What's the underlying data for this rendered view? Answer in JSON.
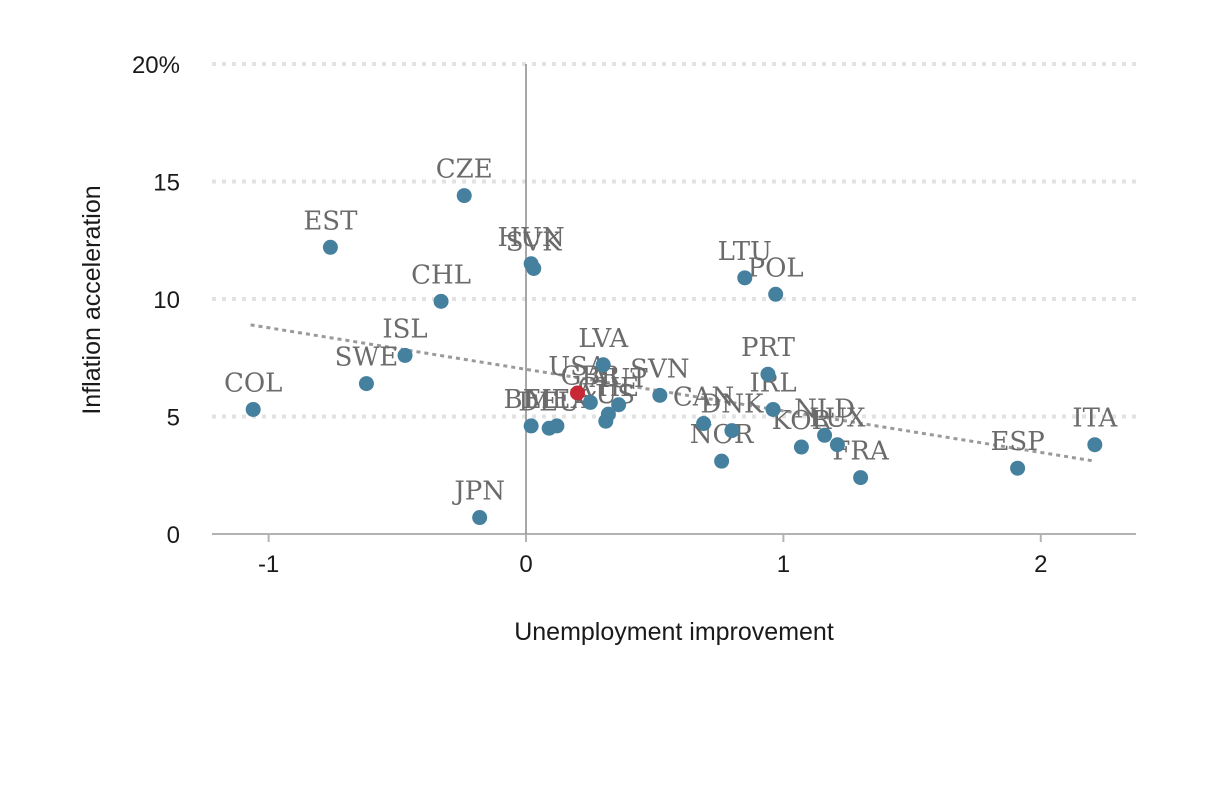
{
  "chart_data": {
    "type": "scatter",
    "xlabel": "Unemployment improvement",
    "ylabel": "Inflation acceleration",
    "xlim": [
      -1.22,
      2.37
    ],
    "ylim": [
      0,
      20
    ],
    "x_ticks": [
      {
        "value": -1,
        "label": "-1"
      },
      {
        "value": 0,
        "label": "0"
      },
      {
        "value": 1,
        "label": "1"
      },
      {
        "value": 2,
        "label": "2"
      }
    ],
    "y_ticks": [
      {
        "value": 0,
        "label": "0"
      },
      {
        "value": 5,
        "label": "5"
      },
      {
        "value": 10,
        "label": "10"
      },
      {
        "value": 15,
        "label": "15"
      },
      {
        "value": 20,
        "label": "20%"
      }
    ],
    "grid": "horizontal",
    "trendline": {
      "x": [
        -1.07,
        2.21
      ],
      "y": [
        8.9,
        3.1
      ]
    },
    "colors": {
      "point": "#46809f",
      "highlight": "#c62836",
      "label": "#6b6b6b",
      "trend": "#9a9a9a"
    },
    "points": [
      {
        "label": "COL",
        "x": -1.06,
        "y": 5.3
      },
      {
        "label": "EST",
        "x": -0.76,
        "y": 12.2
      },
      {
        "label": "SWE",
        "x": -0.62,
        "y": 6.4
      },
      {
        "label": "ISL",
        "x": -0.47,
        "y": 7.6
      },
      {
        "label": "CHL",
        "x": -0.33,
        "y": 9.9
      },
      {
        "label": "CZE",
        "x": -0.24,
        "y": 14.4
      },
      {
        "label": "JPN",
        "x": -0.18,
        "y": 0.7
      },
      {
        "label": "HUN",
        "x": 0.02,
        "y": 11.5
      },
      {
        "label": "SVK",
        "x": 0.03,
        "y": 11.3
      },
      {
        "label": "BEL",
        "x": 0.02,
        "y": 4.6
      },
      {
        "label": "DEU",
        "x": 0.09,
        "y": 4.5
      },
      {
        "label": "MEX",
        "x": 0.12,
        "y": 4.6
      },
      {
        "label": "USA",
        "x": 0.2,
        "y": 6.0,
        "highlight": true
      },
      {
        "label": "GBR",
        "x": 0.25,
        "y": 5.6
      },
      {
        "label": "LVA",
        "x": 0.3,
        "y": 7.2
      },
      {
        "label": "AUS",
        "x": 0.31,
        "y": 4.8
      },
      {
        "label": "CHE",
        "x": 0.32,
        "y": 5.1
      },
      {
        "label": "AUT",
        "x": 0.36,
        "y": 5.5
      },
      {
        "label": "SVN",
        "x": 0.52,
        "y": 5.9
      },
      {
        "label": "CAN",
        "x": 0.69,
        "y": 4.7
      },
      {
        "label": "NOR",
        "x": 0.76,
        "y": 3.1
      },
      {
        "label": "DNK",
        "x": 0.8,
        "y": 4.4
      },
      {
        "label": "LTU",
        "x": 0.85,
        "y": 10.9
      },
      {
        "label": "PRT",
        "x": 0.94,
        "y": 6.8
      },
      {
        "label": "IRL",
        "x": 0.96,
        "y": 5.3
      },
      {
        "label": "POL",
        "x": 0.97,
        "y": 10.2
      },
      {
        "label": "KOR",
        "x": 1.07,
        "y": 3.7
      },
      {
        "label": "NLD",
        "x": 1.16,
        "y": 4.2
      },
      {
        "label": "LUX",
        "x": 1.21,
        "y": 3.8
      },
      {
        "label": "FRA",
        "x": 1.3,
        "y": 2.4
      },
      {
        "label": "ESP",
        "x": 1.91,
        "y": 2.8
      },
      {
        "label": "ITA",
        "x": 2.21,
        "y": 3.8
      }
    ]
  }
}
